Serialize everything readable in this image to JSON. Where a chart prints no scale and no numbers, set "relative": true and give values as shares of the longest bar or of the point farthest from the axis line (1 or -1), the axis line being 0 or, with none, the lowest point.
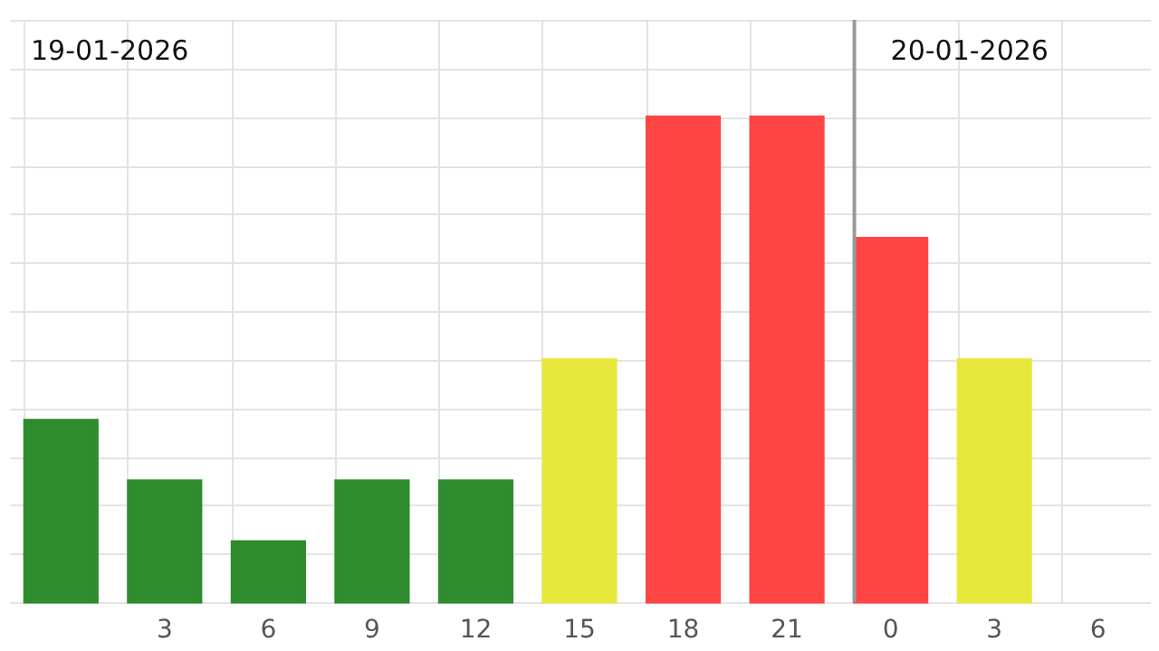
{
  "chart_data": {
    "type": "bar",
    "relative": true,
    "categories": [
      null,
      "3",
      "6",
      "9",
      "12",
      "15",
      "18",
      "21",
      "0",
      "3",
      "6"
    ],
    "values": [
      0.375,
      0.25,
      0.125,
      0.25,
      0.25,
      0.5,
      1,
      1,
      0.75,
      0.5,
      null
    ],
    "colors": [
      "#2e8b2e",
      "#2e8b2e",
      "#2e8b2e",
      "#2e8b2e",
      "#2e8b2e",
      "#e8e83c",
      "#ff4444",
      "#ff4444",
      "#ff4444",
      "#e8e83c",
      "#2e8b2e"
    ],
    "grid": true,
    "annotations": [
      "19-01-2026"
    ],
    "ref_lines": [
      {
        "axis": "x",
        "value": "0",
        "label": "20-01-2026",
        "color": "#999999"
      }
    ]
  }
}
